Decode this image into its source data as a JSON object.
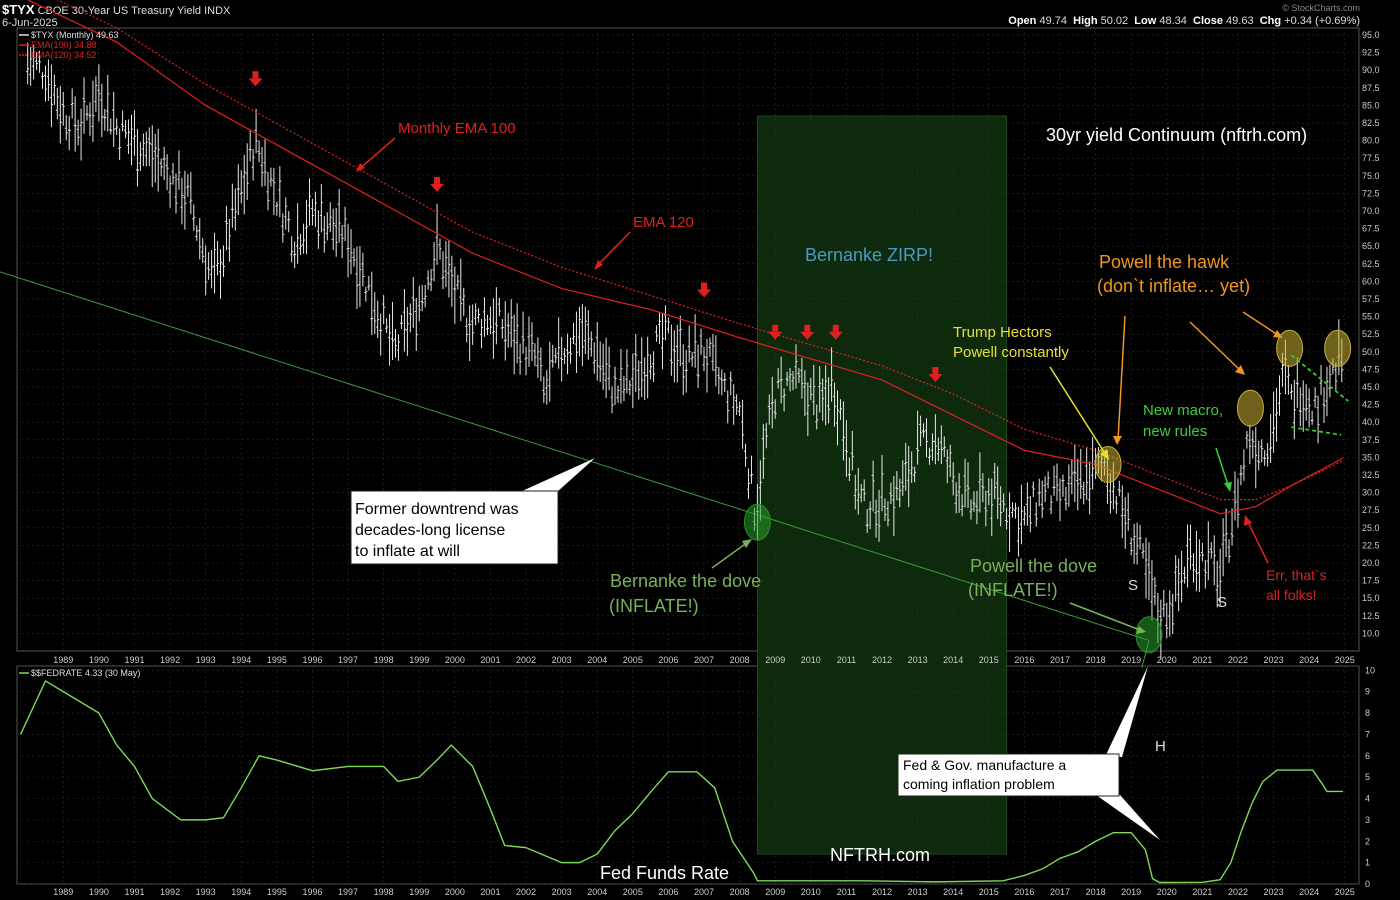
{
  "header": {
    "symbol": "$TYX",
    "name": "CBOE 30-Year US Treasury Yield",
    "exchange": "INDX",
    "date": "6-Jun-2025",
    "watermark": "© StockCharts.com",
    "open_label": "Open",
    "open": "49.74",
    "high_label": "High",
    "high": "50.02",
    "low_label": "Low",
    "low": "48.34",
    "close_label": "Close",
    "close": "49.63",
    "chg_label": "Chg",
    "chg": "+0.34 (+0.69%)"
  },
  "colors": {
    "price_bars": "#e8e8e8",
    "ema": "#e02020",
    "trendline": "#3c9a3c",
    "fed_line": "#7ed957",
    "zirp_zone": "#0d2a0d",
    "oval": "#c8b033",
    "grid": "#2e2e2e"
  },
  "chart_data": [
    {
      "type": "line",
      "title": "30yr yield Continuum (nftrh.com)",
      "series": [
        {
          "name": "$TYX (Monthly) 49.63",
          "x": [
            1988.5,
            1989.0,
            1989.5,
            1990.0,
            1990.5,
            1991.0,
            1991.5,
            1992.0,
            1993.0,
            1993.7,
            1994.0,
            1994.9,
            1995.5,
            1996.0,
            1996.5,
            1997.0,
            1997.5,
            1998.0,
            1998.8,
            1999.5,
            2000.0,
            2000.7,
            2001.0,
            2001.5,
            2002.0,
            2002.8,
            2003.0,
            2003.5,
            2004.0,
            2004.5,
            2005.0,
            2005.5,
            2006.0,
            2006.5,
            2007.0,
            2007.5,
            2008.0,
            2008.5,
            2008.95,
            2009.2,
            2009.5,
            2010.0,
            2010.4,
            2010.8,
            2011.1,
            2011.5,
            2011.8,
            2012.0,
            2012.5,
            2013.0,
            2013.5,
            2014.0,
            2014.5,
            2015.0,
            2015.5,
            2016.0,
            2016.5,
            2017.0,
            2017.5,
            2018.0,
            2018.8,
            2019.2,
            2019.7,
            2020.0,
            2020.3,
            2020.7,
            2021.2,
            2021.7,
            2022.0,
            2022.5,
            2022.8,
            2023.2,
            2023.5,
            2023.8,
            2024.0,
            2024.3,
            2024.7,
            2025.0,
            2025.3,
            2025.45
          ],
          "values": [
            91,
            90,
            84,
            82,
            87,
            82,
            80,
            78,
            72,
            60,
            64,
            80,
            72,
            66,
            70,
            68,
            66,
            60,
            50,
            57,
            65,
            56,
            54,
            55,
            53,
            49,
            44,
            50,
            53,
            50,
            44,
            46,
            50,
            52,
            49,
            50,
            45,
            42,
            27,
            36,
            44,
            46,
            44,
            42,
            46,
            38,
            30,
            28,
            29,
            30,
            36,
            38,
            32,
            28,
            30,
            28,
            26,
            30,
            29,
            31,
            34,
            28,
            22,
            17,
            12,
            15,
            22,
            20,
            18,
            30,
            38,
            36,
            40,
            47,
            43,
            45,
            42,
            46,
            48,
            49.63
          ]
        },
        {
          "name": "EMA(100) 34.88",
          "x": [
            1988.5,
            1991.0,
            1993.5,
            1996.0,
            1998.5,
            2001.0,
            2003.5,
            2006.0,
            2008.5,
            2010.5,
            2012.5,
            2014.5,
            2016.5,
            2018.5,
            2020.5,
            2022.0,
            2023.0,
            2024.0,
            2025.45
          ],
          "values": [
            100,
            94,
            85,
            78,
            71,
            64,
            59,
            56,
            52,
            49,
            46,
            41,
            36,
            34,
            30,
            27,
            28,
            31,
            34.88
          ]
        },
        {
          "name": "EMA(120) 34.52",
          "x": [
            1988.5,
            1991.0,
            1993.5,
            1996.0,
            1998.5,
            2001.0,
            2003.5,
            2006.0,
            2008.5,
            2010.5,
            2012.5,
            2014.5,
            2016.5,
            2018.5,
            2020.5,
            2022.0,
            2023.0,
            2024.0,
            2025.45
          ],
          "values": [
            102,
            96,
            88,
            81,
            74,
            67,
            62,
            58,
            54,
            51,
            48,
            44,
            39,
            36,
            32,
            29,
            29,
            31,
            34.52
          ]
        }
      ],
      "trendline": {
        "x": [
          1988.0,
          2020.0
        ],
        "values": [
          60.5,
          9.0
        ]
      },
      "zirp_zone": {
        "x": [
          2009.0,
          2016.0
        ]
      },
      "ylim": [
        7.5,
        96
      ],
      "xlim": [
        1988.2,
        2025.9
      ],
      "yticks": [
        "95.0",
        "92.5",
        "90.0",
        "87.5",
        "85.0",
        "82.5",
        "80.0",
        "77.5",
        "75.0",
        "72.5",
        "70.0",
        "67.5",
        "65.0",
        "62.5",
        "60.0",
        "57.5",
        "55.0",
        "52.5",
        "50.0",
        "47.5",
        "45.0",
        "42.5",
        "40.0",
        "37.5",
        "35.0",
        "32.5",
        "30.0",
        "27.5",
        "25.0",
        "22.5",
        "20.0",
        "17.5",
        "15.0",
        "12.5",
        "10.0"
      ],
      "xticks": [
        "1989",
        "1990",
        "1991",
        "1992",
        "1993",
        "1994",
        "1995",
        "1996",
        "1997",
        "1998",
        "1999",
        "2000",
        "2001",
        "2002",
        "2003",
        "2004",
        "2005",
        "2006",
        "2007",
        "2008",
        "2009",
        "2010",
        "2011",
        "2012",
        "2013",
        "2014",
        "2015",
        "2016",
        "2017",
        "2018",
        "2019",
        "2020",
        "2021",
        "2022",
        "2023",
        "2024",
        "2025"
      ],
      "arrows_x": [
        1994.9,
        2000.0,
        2007.5,
        2009.5,
        2010.4,
        2011.2,
        2014.0
      ],
      "ovals": [
        {
          "x": 2009.0,
          "y": 25.8,
          "color": "green"
        },
        {
          "x": 2020.0,
          "y": 9.8,
          "color": "green"
        },
        {
          "x": 2018.85,
          "y": 34.0,
          "color": "yellow"
        },
        {
          "x": 2022.85,
          "y": 42.0,
          "color": "yellow"
        },
        {
          "x": 2023.95,
          "y": 50.5,
          "color": "yellow"
        },
        {
          "x": 2025.3,
          "y": 50.5,
          "color": "yellow"
        }
      ]
    },
    {
      "type": "line",
      "title": "Fed Funds Rate",
      "series": [
        {
          "name": "$$FEDRATE 4.33 (30 May)",
          "x": [
            1988.3,
            1989.0,
            1989.5,
            1990.5,
            1991.0,
            1991.5,
            1992.0,
            1992.8,
            1993.5,
            1994.0,
            1994.5,
            1995.0,
            1995.5,
            1996.5,
            1997.5,
            1998.5,
            1998.9,
            1999.5,
            2000.0,
            2000.4,
            2001.0,
            2001.5,
            2001.9,
            2002.5,
            2003.5,
            2004.0,
            2004.5,
            2005.0,
            2005.5,
            2006.0,
            2006.5,
            2007.3,
            2007.8,
            2008.3,
            2008.9,
            2009.0,
            2010.5,
            2012.0,
            2014.0,
            2015.9,
            2016.5,
            2017.0,
            2017.5,
            2018.0,
            2018.5,
            2019.0,
            2019.5,
            2019.9,
            2020.1,
            2020.3,
            2021.5,
            2022.0,
            2022.3,
            2022.6,
            2022.9,
            2023.2,
            2023.6,
            2024.0,
            2024.6,
            2024.9,
            2025.0,
            2025.45
          ],
          "values": [
            7.0,
            9.5,
            9.0,
            8.0,
            6.5,
            5.5,
            4.0,
            3.0,
            3.0,
            3.1,
            4.5,
            6.0,
            5.8,
            5.3,
            5.5,
            5.5,
            4.8,
            5.0,
            5.8,
            6.5,
            5.5,
            3.5,
            1.8,
            1.7,
            1.0,
            1.0,
            1.4,
            2.5,
            3.3,
            4.3,
            5.25,
            5.25,
            4.5,
            2.0,
            0.5,
            0.15,
            0.15,
            0.15,
            0.1,
            0.15,
            0.4,
            0.7,
            1.2,
            1.5,
            2.0,
            2.4,
            2.4,
            1.6,
            0.25,
            0.07,
            0.08,
            0.2,
            1.0,
            2.5,
            3.8,
            4.8,
            5.33,
            5.33,
            5.33,
            4.6,
            4.33,
            4.33
          ]
        }
      ],
      "ylim": [
        0,
        10.2
      ],
      "xlim": [
        1988.2,
        2025.9
      ],
      "yticks": [
        "10",
        "9",
        "8",
        "7",
        "6",
        "5",
        "4",
        "3",
        "2",
        "1",
        "0"
      ]
    }
  ],
  "labels": {
    "monthly_ema": "Monthly EMA 100",
    "ema120": "EMA 120",
    "zirp": "Bernanke ZIRP!",
    "title": "30yr yield Continuum (nftrh.com)",
    "hawk_line1": "Powell the hawk",
    "hawk_line2": "(don`t inflate… yet)",
    "trump_line1": "Trump Hectors",
    "trump_line2": "Powell constantly",
    "macro_line1": "New macro,",
    "macro_line2": "new rules",
    "bernanke_line1": "Bernanke the dove",
    "bernanke_line2": "(INFLATE!)",
    "powell_dove_line1": "Powell the dove",
    "powell_dove_line2": "(INFLATE!)",
    "err_line1": "Err, that`s",
    "err_line2": "all folks!",
    "s1": "S",
    "s2": "S",
    "h": "H",
    "callout1_line1": "Former downtrend was",
    "callout1_line2": "decades-long license",
    "callout1_line3": "to inflate at will",
    "callout2_line1": "Fed & Gov. manufacture a",
    "callout2_line2": "coming inflation problem",
    "fed_funds": "Fed Funds Rate",
    "nftrh": "NFTRH.com"
  }
}
